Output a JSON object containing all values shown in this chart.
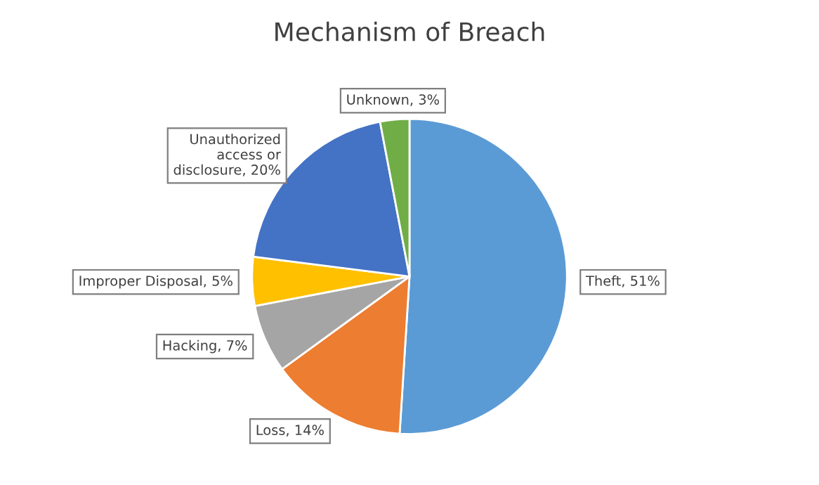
{
  "chart_data": {
    "type": "pie",
    "title": "Mechanism of Breach",
    "categories": [
      "Theft",
      "Loss",
      "Hacking",
      "Improper Disposal",
      "Unauthorized\naccess or\ndisclosure",
      "Unknown"
    ],
    "values": [
      51,
      14,
      7,
      5,
      20,
      3
    ],
    "colors": [
      "#5b9bd5",
      "#ed7d31",
      "#a5a5a5",
      "#ffc000",
      "#4472c4",
      "#70ad47"
    ],
    "value_labels": [
      "51%",
      "14%",
      "7%",
      "5%",
      "20%",
      "3%"
    ],
    "legend": false
  }
}
